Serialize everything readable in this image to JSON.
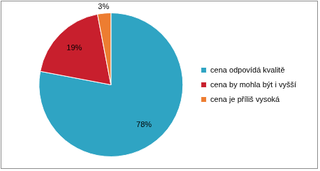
{
  "chart_data": {
    "type": "pie",
    "categories": [
      "cena odpovídá kvalitě",
      "cena by mohla být i vyšší",
      "cena je příliš vysoká"
    ],
    "values": [
      78,
      19,
      3
    ],
    "value_labels": [
      "78%",
      "19%",
      "3%"
    ],
    "colors": [
      "#2fa4c3",
      "#c81f2d",
      "#ed7d31"
    ],
    "legend": "right",
    "data_labels": true
  }
}
